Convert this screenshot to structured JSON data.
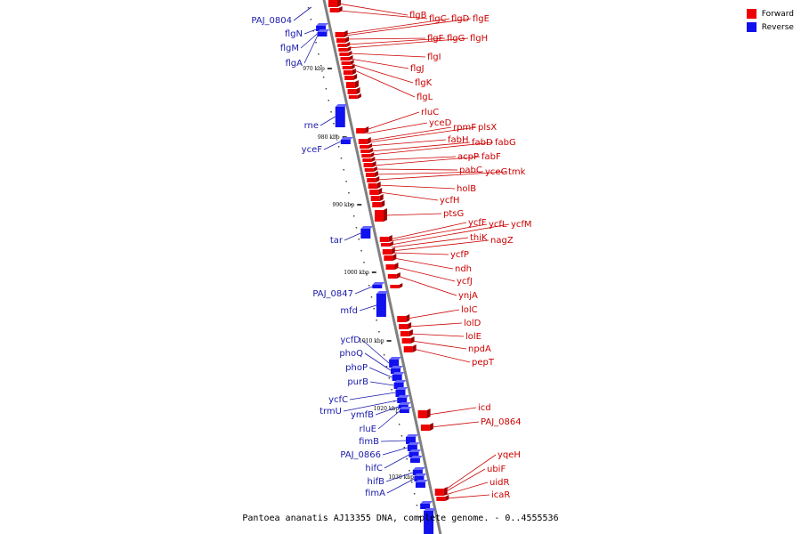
{
  "colors": {
    "forward": "#ee0000",
    "reverse": "#1111ee",
    "forward_label": "#cc0000",
    "reverse_label": "#1a1aaa",
    "backbone": "#808080"
  },
  "legend": {
    "forward_label": "Forward",
    "reverse_label": "Reverse"
  },
  "caption": "Pantoea ananatis AJ13355 DNA, complete genome. - 0..4555536",
  "kbp_ticks": [
    "970 kbp",
    "980 kbp",
    "990 kbp",
    "1000 kbp",
    "1010 kbp",
    "1020 kbp",
    "1030 kbp"
  ],
  "forward_genes": [
    "flgB",
    "flgC",
    "flgD",
    "flgE",
    "flgF",
    "flgG",
    "flgH",
    "flgI",
    "flgJ",
    "flgK",
    "flgL",
    "rluC",
    "yceD",
    "rpmF",
    "plsX",
    "fabH",
    "fabD",
    "fabG",
    "acpP",
    "fabF",
    "pabC",
    "yceG",
    "tmk",
    "holB",
    "ycfH",
    "ptsG",
    "ycfF",
    "ycfL",
    "ycfM",
    "thiK",
    "nagZ",
    "ycfP",
    "ndh",
    "ycfJ",
    "ynjA",
    "lolC",
    "lolD",
    "lolE",
    "npdA",
    "pepT",
    "icd",
    "PAJ_0864",
    "yqeH",
    "ubiF",
    "uidR",
    "icaR"
  ],
  "reverse_genes": [
    "PAJ_0804",
    "flgN",
    "flgM",
    "flgA",
    "rne",
    "yceF",
    "tar",
    "PAJ_0847",
    "mfd",
    "ycfD",
    "phoQ",
    "phoP",
    "purB",
    "ycfC",
    "trmU",
    "ymfB",
    "rluE",
    "fimB",
    "PAJ_0866",
    "hifC",
    "hifB",
    "fimA"
  ]
}
